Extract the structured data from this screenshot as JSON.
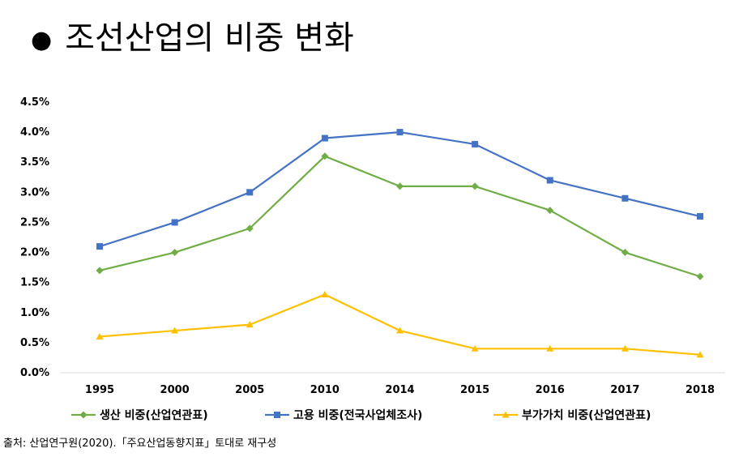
{
  "title": "조선산업의 비중 변화",
  "source": "출처: 산업연구원(2020).「주요산업동향지표」토대로 재구성",
  "chart_data": {
    "type": "line",
    "categories": [
      "1995",
      "2000",
      "2005",
      "2010",
      "2014",
      "2015",
      "2016",
      "2017",
      "2018"
    ],
    "y_tick_labels": [
      "0.0%",
      "0.5%",
      "1.0%",
      "1.5%",
      "2.0%",
      "2.5%",
      "3.0%",
      "3.5%",
      "4.0%",
      "4.5%"
    ],
    "ylim": [
      0,
      4.5
    ],
    "grid": false,
    "legend_position": "bottom",
    "series": [
      {
        "name": "생산 비중(산업연관표)",
        "color": "#70AD47",
        "marker": "diamond",
        "values": [
          1.7,
          2.0,
          2.4,
          3.6,
          3.1,
          3.1,
          2.7,
          2.0,
          1.6
        ]
      },
      {
        "name": "고용 비중(전국사업체조사)",
        "color": "#4472C4",
        "marker": "square",
        "values": [
          2.1,
          2.5,
          3.0,
          3.9,
          4.0,
          3.8,
          3.2,
          2.9,
          2.6
        ]
      },
      {
        "name": "부가가치 비중(산업연관표)",
        "color": "#FFC000",
        "marker": "triangle",
        "values": [
          0.6,
          0.7,
          0.8,
          1.3,
          0.7,
          0.4,
          0.4,
          0.4,
          0.3
        ]
      }
    ]
  }
}
